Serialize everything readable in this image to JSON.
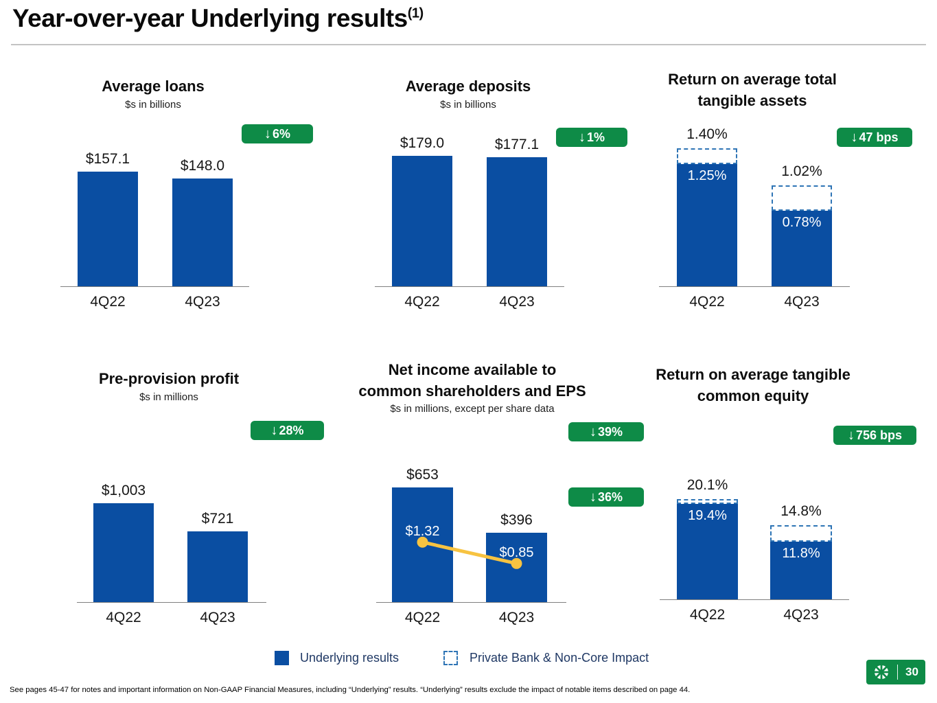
{
  "slide": {
    "title": "Year-over-year Underlying results",
    "title_superscript": "(1)",
    "footnote": "See pages 45-47 for notes and important information on Non-GAAP Financial Measures, including “Underlying” results. “Underlying” results exclude the impact of notable items described on page 44.",
    "page_number": "30"
  },
  "colors": {
    "bar_blue": "#0a4ea2",
    "badge_green": "#0e8b47",
    "dashed_blue": "#2e74b5",
    "eps_yellow": "#f7c341",
    "legend_text": "#1f3864",
    "logo_green": "#0e8b47"
  },
  "legend": {
    "items": [
      {
        "swatch": "solid",
        "label": "Underlying results"
      },
      {
        "swatch": "dashed",
        "label": "Private Bank & Non-Core Impact"
      }
    ]
  },
  "chart_data": [
    {
      "type": "bar",
      "title": "Average loans",
      "title_lines": [
        "Average loans"
      ],
      "subtitle": "$s in billions",
      "categories": [
        "4Q22",
        "4Q23"
      ],
      "values": [
        157.1,
        148.0
      ],
      "value_labels": [
        "$157.1",
        "$148.0"
      ],
      "badge": {
        "arrow": "↓",
        "label": "6%"
      },
      "ylim": [
        0,
        200
      ],
      "grid": false
    },
    {
      "type": "bar",
      "title": "Average deposits",
      "title_lines": [
        "Average deposits"
      ],
      "subtitle": "$s in billions",
      "categories": [
        "4Q22",
        "4Q23"
      ],
      "values": [
        179.0,
        177.1
      ],
      "value_labels": [
        "$179.0",
        "$177.1"
      ],
      "badge": {
        "arrow": "↓",
        "label": "1%"
      },
      "ylim": [
        0,
        200
      ],
      "grid": false
    },
    {
      "type": "bar",
      "title": "Return on average total tangible assets",
      "title_lines": [
        "Return on average total",
        "tangible assets"
      ],
      "subtitle": "",
      "categories": [
        "4Q22",
        "4Q23"
      ],
      "series": [
        {
          "name": "Underlying results",
          "values": [
            1.25,
            0.78
          ],
          "labels": [
            "1.25%",
            "0.78%"
          ]
        },
        {
          "name": "Private Bank & Non-Core Impact",
          "values": [
            0.15,
            0.24
          ]
        }
      ],
      "totals": [
        1.4,
        1.02
      ],
      "total_labels": [
        "1.40%",
        "1.02%"
      ],
      "badge": {
        "arrow": "↓",
        "label": "47 bps"
      },
      "ylim": [
        0,
        1.6
      ],
      "grid": false
    },
    {
      "type": "bar",
      "title": "Pre-provision profit",
      "title_lines": [
        "Pre-provision profit"
      ],
      "subtitle": "$s in millions",
      "categories": [
        "4Q22",
        "4Q23"
      ],
      "values": [
        1003,
        721
      ],
      "value_labels": [
        "$1,003",
        "$721"
      ],
      "badge": {
        "arrow": "↓",
        "label": "28%"
      },
      "ylim": [
        0,
        1200
      ],
      "grid": false
    },
    {
      "type": "bar+line",
      "title": "Net income available to common shareholders and EPS",
      "title_lines": [
        "Net income available to",
        "common shareholders and EPS"
      ],
      "subtitle": "$s in millions, except per share data",
      "categories": [
        "4Q22",
        "4Q23"
      ],
      "values": [
        653,
        396
      ],
      "value_labels": [
        "$653",
        "$396"
      ],
      "eps_values": [
        1.32,
        0.85
      ],
      "eps_labels": [
        "$1.32",
        "$0.85"
      ],
      "badges": [
        {
          "arrow": "↓",
          "label": "39%"
        },
        {
          "arrow": "↓",
          "label": "36%"
        }
      ],
      "ylim": [
        0,
        800
      ],
      "eps_ylim": [
        0,
        3.1
      ],
      "grid": false
    },
    {
      "type": "bar",
      "title": "Return on average tangible common equity",
      "title_lines": [
        "Return on average tangible",
        "common equity"
      ],
      "subtitle": "",
      "categories": [
        "4Q22",
        "4Q23"
      ],
      "series": [
        {
          "name": "Underlying results",
          "values": [
            19.4,
            11.8
          ],
          "labels": [
            "19.4%",
            "11.8%"
          ]
        },
        {
          "name": "Private Bank & Non-Core Impact",
          "values": [
            0.7,
            3.0
          ]
        }
      ],
      "totals": [
        20.1,
        14.8
      ],
      "total_labels": [
        "20.1%",
        "14.8%"
      ],
      "badge": {
        "arrow": "↓",
        "label": "756 bps"
      },
      "ylim": [
        0,
        22
      ],
      "grid": false
    }
  ]
}
